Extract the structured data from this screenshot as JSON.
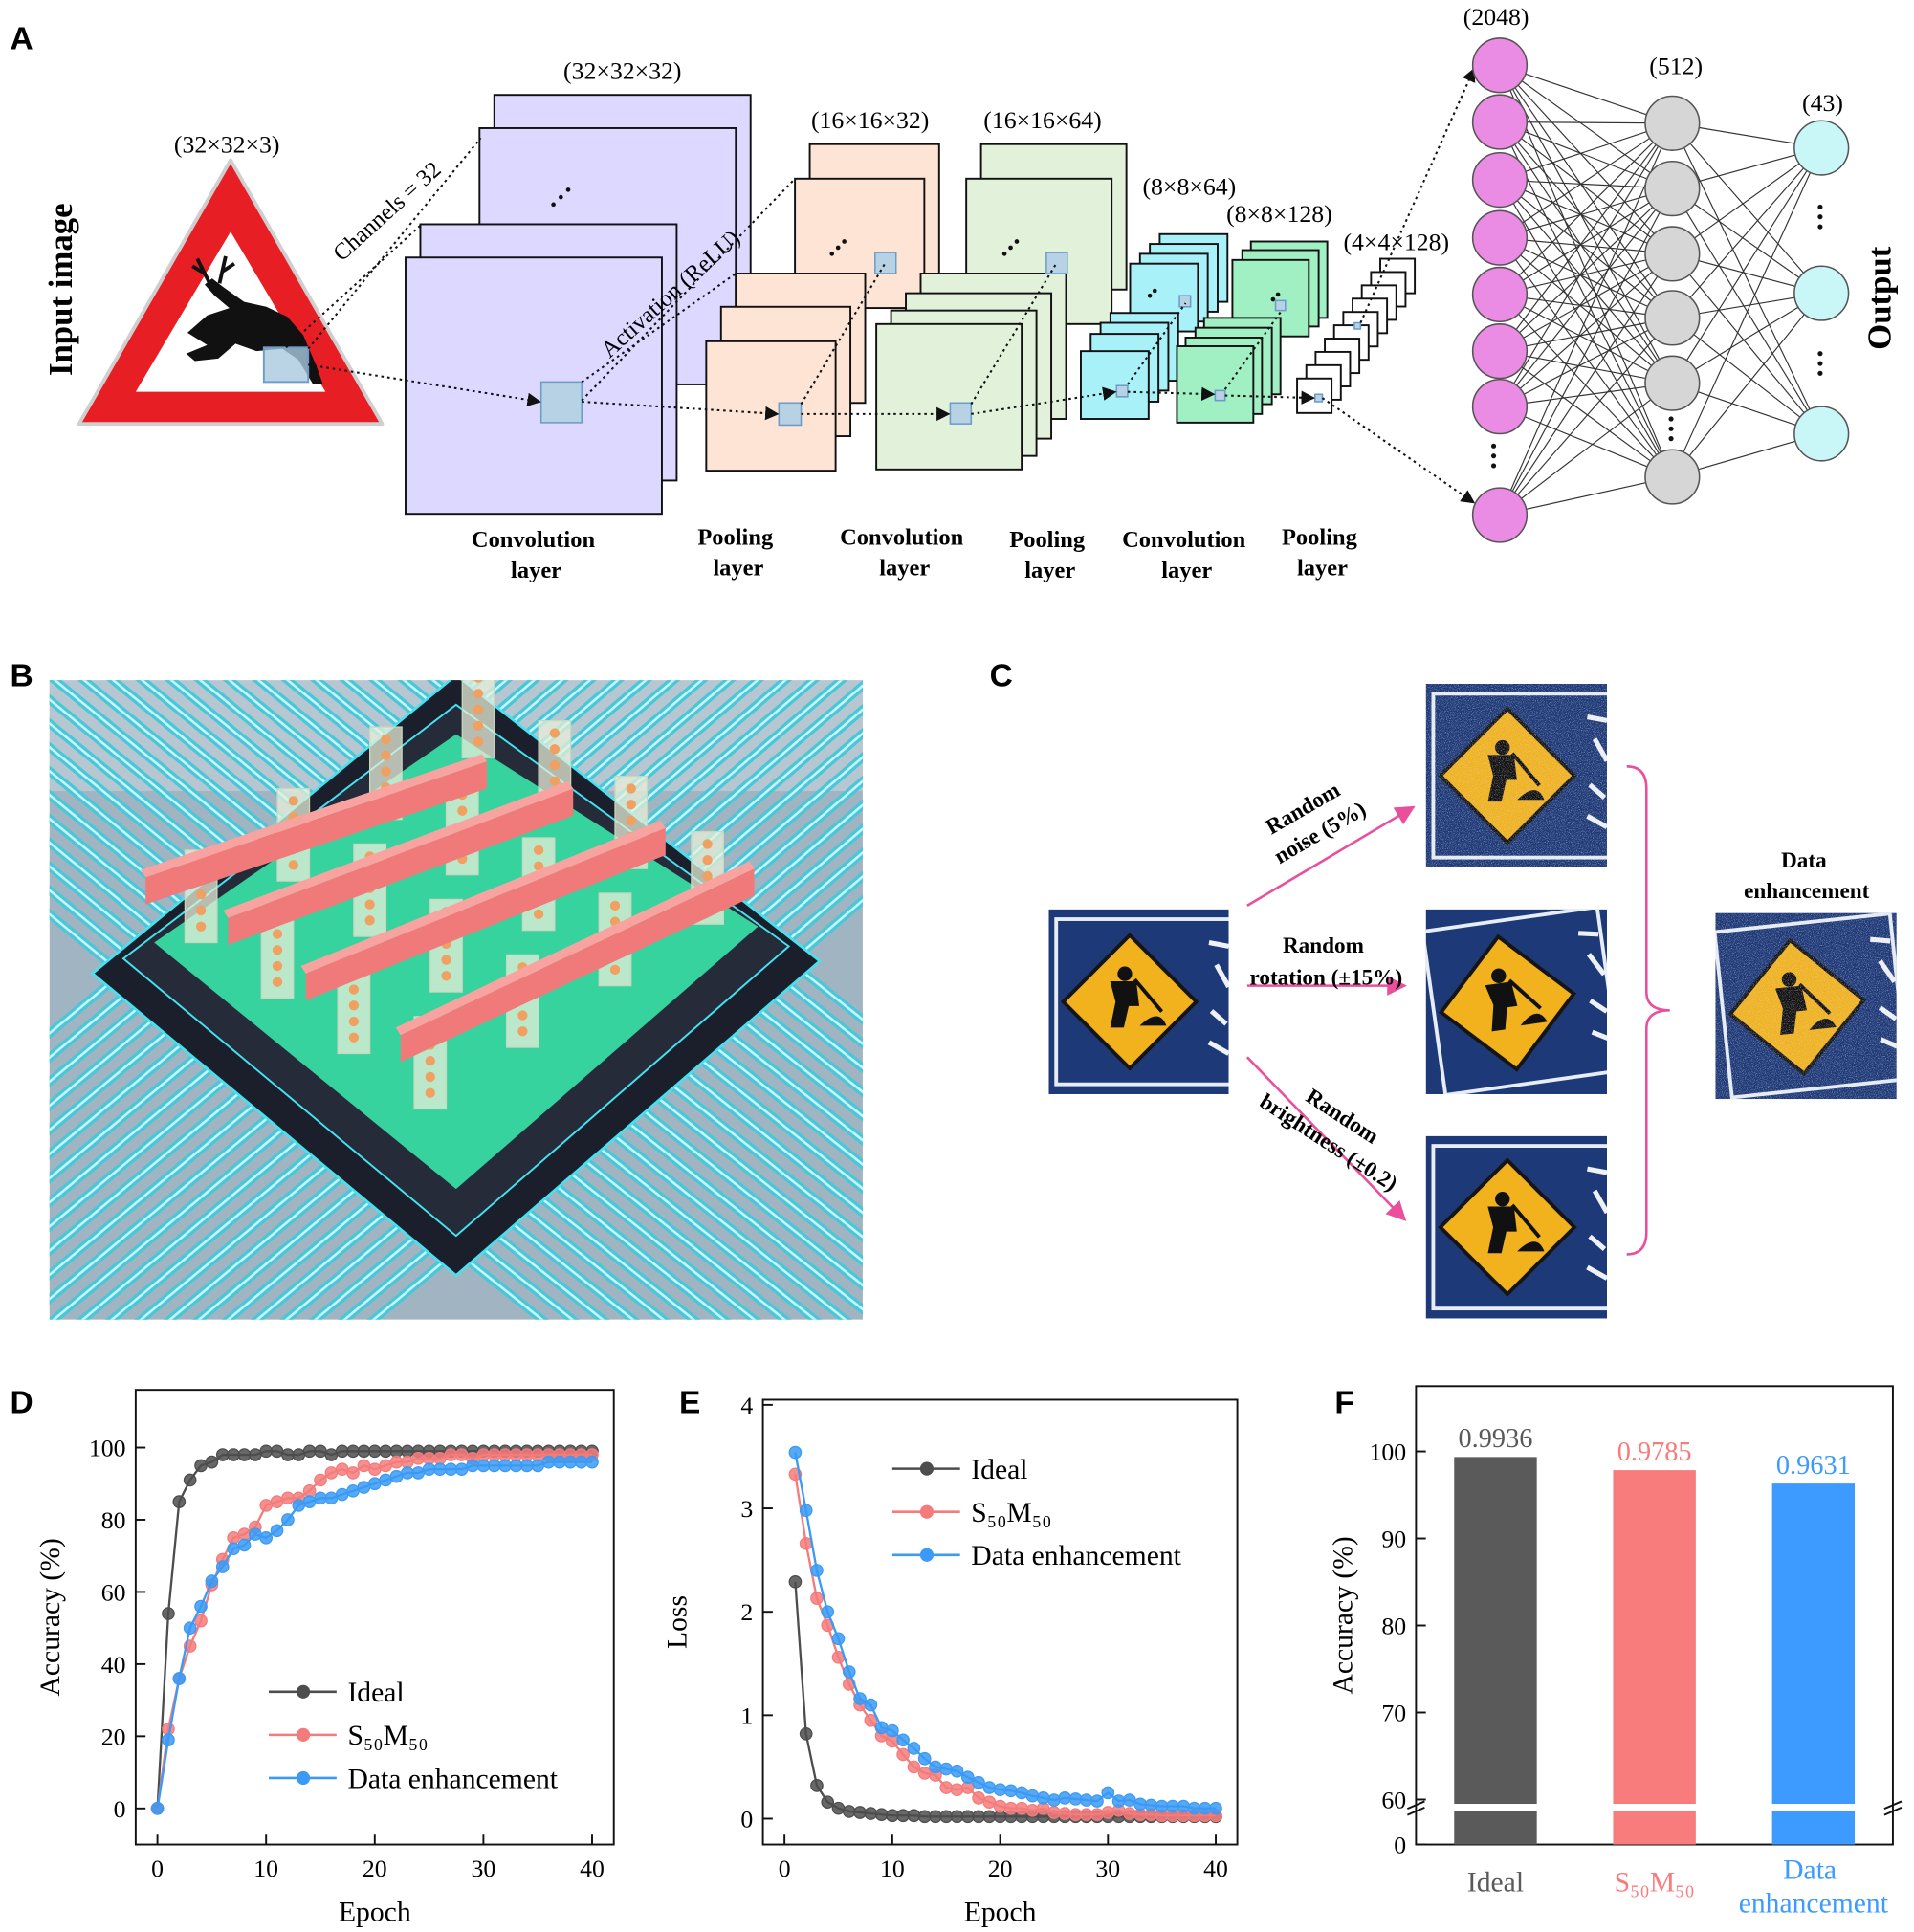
{
  "figure": {
    "panel_labels": [
      "A",
      "B",
      "C",
      "D",
      "E",
      "F"
    ],
    "panel_a": {
      "input_title": "Input image",
      "input_size": "(32×32×3)",
      "channels": "Channels = 32",
      "activation": "Activation (ReLU)",
      "feature_sizes": [
        "(32×32×32)",
        "(16×16×32)",
        "(16×16×64)",
        "(8×8×64)",
        "(8×8×128)",
        "(4×4×128)"
      ],
      "layers": [
        "Convolution layer",
        "Pooling layer",
        "Convolution layer",
        "Pooling layer",
        "Convolution layer",
        "Pooling layer"
      ],
      "dense_sizes": [
        "(2048)",
        "(512)",
        "(43)"
      ],
      "output": "Output"
    },
    "panel_c": {
      "augmentations": [
        "Random noise (5%)",
        "Random rotation (±15%)",
        "Random brightness (±0.2)"
      ],
      "result": "Data enhancement"
    }
  },
  "chart_data": [
    {
      "type": "line",
      "xlabel": "Epoch",
      "ylabel": "Accuracy (%)",
      "x": [
        0,
        1,
        2,
        3,
        4,
        5,
        6,
        7,
        8,
        9,
        10,
        11,
        12,
        13,
        14,
        15,
        16,
        17,
        18,
        19,
        20,
        21,
        22,
        23,
        24,
        25,
        26,
        27,
        28,
        29,
        30,
        31,
        32,
        33,
        34,
        35,
        36,
        37,
        38,
        39,
        40
      ],
      "xlim": [
        -2,
        42
      ],
      "xticks": [
        0,
        10,
        20,
        30,
        40
      ],
      "ylim": [
        -10,
        116
      ],
      "yticks": [
        0,
        20,
        40,
        60,
        80,
        100
      ],
      "legend": "lower right",
      "series": [
        {
          "name": "Ideal",
          "color": "#4d4d4d",
          "values": [
            0,
            54,
            85,
            91,
            95,
            96,
            98,
            98,
            98,
            98,
            99,
            99,
            98,
            98,
            99,
            99,
            98,
            99,
            99,
            99,
            99,
            99,
            99,
            99,
            99,
            99,
            99,
            99,
            99,
            99,
            99,
            99,
            99,
            99,
            99,
            99,
            99,
            99,
            99,
            99,
            99
          ]
        },
        {
          "name": "S₅₀M₅₀",
          "color": "#f47b7b",
          "values": [
            0,
            22,
            36,
            45,
            52,
            62,
            69,
            75,
            76,
            78,
            84,
            85,
            86,
            86,
            88,
            91,
            93,
            94,
            93,
            95,
            94,
            95,
            96,
            96,
            97,
            97,
            97,
            98,
            98,
            97,
            98,
            98,
            98,
            98,
            98,
            98,
            98,
            98,
            98,
            98,
            98
          ]
        },
        {
          "name": "Data enhancement",
          "color": "#3a9af5",
          "values": [
            0,
            19,
            36,
            50,
            56,
            63,
            67,
            72,
            73,
            76,
            75,
            77,
            80,
            84,
            85,
            86,
            86,
            87,
            88,
            89,
            90,
            91,
            92,
            93,
            93,
            94,
            94,
            94,
            94,
            95,
            95,
            95,
            95,
            95,
            95,
            95,
            96,
            96,
            96,
            96,
            96
          ]
        }
      ]
    },
    {
      "type": "line",
      "xlabel": "Epoch",
      "ylabel": "Loss",
      "x": [
        1,
        2,
        3,
        4,
        5,
        6,
        7,
        8,
        9,
        10,
        11,
        12,
        13,
        14,
        15,
        16,
        17,
        18,
        19,
        20,
        21,
        22,
        23,
        24,
        25,
        26,
        27,
        28,
        29,
        30,
        31,
        32,
        33,
        34,
        35,
        36,
        37,
        38,
        39,
        40
      ],
      "xlim": [
        -2,
        42
      ],
      "xticks": [
        0,
        10,
        20,
        30,
        40
      ],
      "ylim": [
        -0.25,
        4.05
      ],
      "yticks": [
        0,
        1,
        2,
        3,
        4
      ],
      "legend": "upper right",
      "series": [
        {
          "name": "Ideal",
          "color": "#4d4d4d",
          "values": [
            2.29,
            0.82,
            0.32,
            0.16,
            0.1,
            0.07,
            0.06,
            0.05,
            0.04,
            0.03,
            0.03,
            0.03,
            0.02,
            0.02,
            0.02,
            0.02,
            0.02,
            0.02,
            0.02,
            0.02,
            0.02,
            0.02,
            0.02,
            0.02,
            0.02,
            0.02,
            0.02,
            0.02,
            0.02,
            0.02,
            0.02,
            0.02,
            0.02,
            0.02,
            0.02,
            0.02,
            0.02,
            0.02,
            0.02,
            0.02
          ]
        },
        {
          "name": "S₅₀M₅₀",
          "color": "#f47b7b",
          "values": [
            3.33,
            2.66,
            2.13,
            1.87,
            1.56,
            1.3,
            1.1,
            0.95,
            0.8,
            0.75,
            0.62,
            0.5,
            0.44,
            0.42,
            0.3,
            0.28,
            0.3,
            0.2,
            0.16,
            0.12,
            0.1,
            0.1,
            0.08,
            0.1,
            0.06,
            0.05,
            0.04,
            0.04,
            0.04,
            0.06,
            0.08,
            0.05,
            0.04,
            0.04,
            0.03,
            0.03,
            0.03,
            0.03,
            0.03,
            0.03
          ]
        },
        {
          "name": "Data enhancement",
          "color": "#3a9af5",
          "values": [
            3.54,
            2.98,
            2.4,
            2,
            1.74,
            1.42,
            1.16,
            1.1,
            0.88,
            0.85,
            0.76,
            0.68,
            0.58,
            0.5,
            0.48,
            0.46,
            0.4,
            0.35,
            0.3,
            0.28,
            0.27,
            0.25,
            0.22,
            0.2,
            0.18,
            0.2,
            0.19,
            0.18,
            0.17,
            0.25,
            0.17,
            0.18,
            0.14,
            0.13,
            0.12,
            0.12,
            0.12,
            0.1,
            0.1,
            0.1
          ]
        }
      ]
    },
    {
      "type": "bar",
      "ylabel": "Accuracy (%)",
      "categories": [
        "Ideal",
        "S₅₀M₅₀",
        "Data enhancement"
      ],
      "values": [
        99.36,
        97.85,
        96.31
      ],
      "value_labels": [
        "0.9936",
        "0.9785",
        "0.9631"
      ],
      "colors": [
        "#5a5a5a",
        "#f87c7c",
        "#3d9bff"
      ],
      "ylim": [
        0,
        107.5
      ],
      "ybreak": [
        4,
        59.5
      ],
      "yticks": [
        0,
        60,
        70,
        80,
        90,
        100
      ]
    }
  ]
}
